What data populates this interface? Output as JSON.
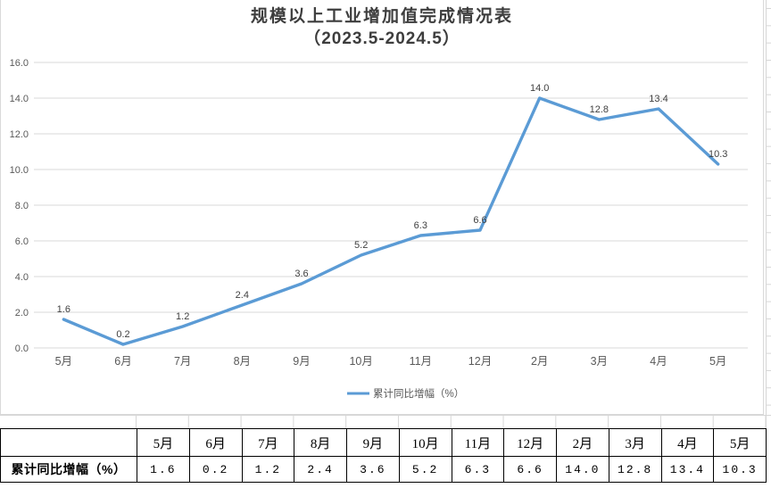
{
  "title": {
    "line1": "规模以上工业增加值完成情况表",
    "line2": "（2023.5-2024.5）"
  },
  "chart_data": {
    "type": "line",
    "title": "规模以上工业增加值完成情况表（2023.5-2024.5）",
    "categories": [
      "5月",
      "6月",
      "7月",
      "8月",
      "9月",
      "10月",
      "11月",
      "12月",
      "2月",
      "3月",
      "4月",
      "5月"
    ],
    "series": [
      {
        "name": "累计同比增幅（%）",
        "values": [
          1.6,
          0.2,
          1.2,
          2.4,
          3.6,
          5.2,
          6.3,
          6.6,
          14.0,
          12.8,
          13.4,
          10.3
        ]
      }
    ],
    "xlabel": "",
    "ylabel": "",
    "ylim": [
      0,
      16
    ],
    "ytick_step": 2,
    "ytick_label_format": "one_decimal",
    "grid": true,
    "data_labels": true,
    "legend_position": "bottom",
    "colors": {
      "series_line": "#5b9bd5",
      "gridline": "#d9d9d9",
      "axis_text": "#595959",
      "data_label_text": "#404040",
      "legend_text": "#595959",
      "title_text": "#3d3d3d",
      "table_border": "#000000",
      "sheet_gridline": "#d6d6d6"
    }
  },
  "legend": {
    "label": "累计同比增幅（%）"
  },
  "table": {
    "row_label": "累计同比增幅（%）",
    "columns": [
      "5月",
      "6月",
      "7月",
      "8月",
      "9月",
      "10月",
      "11月",
      "12月",
      "2月",
      "3月",
      "4月",
      "5月"
    ],
    "values": [
      "1.6",
      "0.2",
      "1.2",
      "2.4",
      "3.6",
      "5.2",
      "6.3",
      "6.6",
      "14.0",
      "12.8",
      "13.4",
      "10.3"
    ]
  }
}
